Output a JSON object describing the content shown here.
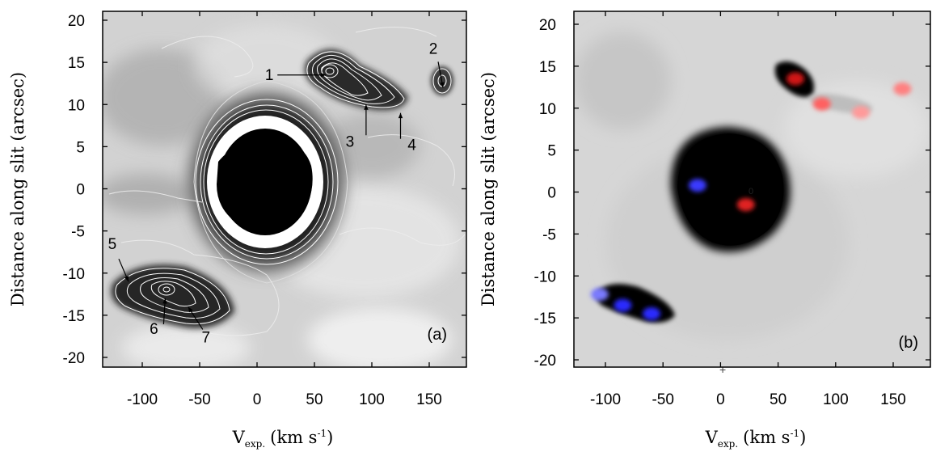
{
  "chart_data": [
    {
      "type": "heatmap",
      "panel_label": "(a)",
      "xlabel": "V",
      "xlabel_sub": "exp.",
      "xlabel_unit": "(km s",
      "xlabel_sup": "-1",
      "xlabel_close": ")",
      "ylabel": "Distance along slit (arcsec)",
      "xlim": [
        -135,
        180
      ],
      "ylim": [
        -21,
        21
      ],
      "xticks": [
        -100,
        -50,
        0,
        50,
        100,
        150
      ],
      "yticks": [
        -20,
        -15,
        -10,
        -5,
        0,
        5,
        10,
        15,
        20
      ],
      "colormap": "greyscale with contours",
      "features": [
        {
          "label": "1",
          "x": 60,
          "y": 13.5
        },
        {
          "label": "2",
          "x": 162,
          "y": 12
        },
        {
          "label": "3",
          "x": 95,
          "y": 10
        },
        {
          "label": "4",
          "x": 125,
          "y": 9
        },
        {
          "label": "5",
          "x": -112,
          "y": -11
        },
        {
          "label": "6",
          "x": -80,
          "y": -13
        },
        {
          "label": "7",
          "x": -60,
          "y": -14
        }
      ]
    },
    {
      "type": "heatmap",
      "panel_label": "(b)",
      "xlabel": "V",
      "xlabel_sub": "exp.",
      "xlabel_unit": "(km s",
      "xlabel_sup": "-1",
      "xlabel_close": ")",
      "ylabel": "Distance along slit (arcsec)",
      "xlim": [
        -130,
        175
      ],
      "ylim": [
        -21,
        21
      ],
      "xticks": [
        -100,
        -50,
        0,
        50,
        100,
        150
      ],
      "yticks": [
        -20,
        -15,
        -10,
        -5,
        0,
        5,
        10,
        15,
        20
      ],
      "colormap": "greyscale with red and blue knots",
      "center_marker": "0",
      "knots": [
        {
          "color": "#3a3aff",
          "x": -20,
          "y": 0.8
        },
        {
          "color": "#e02020",
          "x": 22,
          "y": -1.5
        },
        {
          "color": "#d01818",
          "x": 65,
          "y": 13.5
        },
        {
          "color": "#ff6060",
          "x": 88,
          "y": 10.5
        },
        {
          "color": "#ff9a9a",
          "x": 122,
          "y": 9.5
        },
        {
          "color": "#ff8080",
          "x": 158,
          "y": 12.3
        },
        {
          "color": "#7a7aff",
          "x": -105,
          "y": -12.2
        },
        {
          "color": "#2a2aff",
          "x": -85,
          "y": -13.5
        },
        {
          "color": "#2a2aff",
          "x": -60,
          "y": -14.5
        }
      ]
    }
  ]
}
